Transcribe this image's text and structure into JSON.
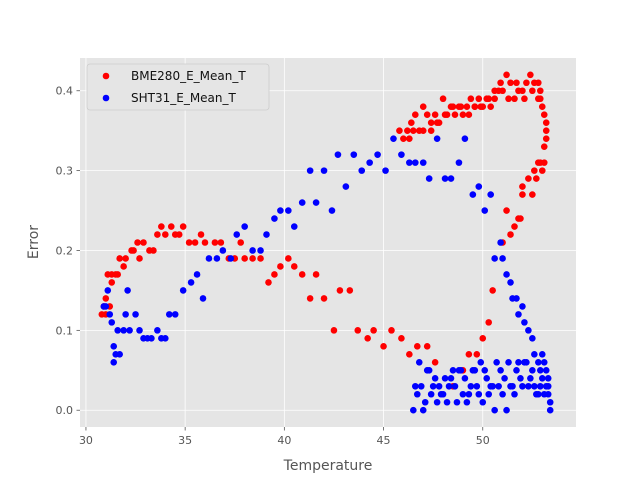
{
  "chart_data": {
    "type": "scatter",
    "title": "",
    "xlabel": "Temperature",
    "ylabel": "Error",
    "xlim": [
      29.7,
      54.7
    ],
    "ylim": [
      -0.021,
      0.441
    ],
    "xticks": [
      30,
      35,
      40,
      45,
      50
    ],
    "yticks": [
      0.0,
      0.1,
      0.2,
      0.3,
      0.4
    ],
    "ytick_labels": [
      "0.0",
      "0.1",
      "0.2",
      "0.3",
      "0.4"
    ],
    "grid": true,
    "legend_position": "top-left",
    "series": [
      {
        "name": "BME280_E_Mean_T",
        "color": "#ff0000",
        "points": [
          [
            30.8,
            0.12
          ],
          [
            30.9,
            0.13
          ],
          [
            31.0,
            0.12
          ],
          [
            31.0,
            0.14
          ],
          [
            31.1,
            0.17
          ],
          [
            31.2,
            0.13
          ],
          [
            31.3,
            0.16
          ],
          [
            31.3,
            0.17
          ],
          [
            31.5,
            0.17
          ],
          [
            31.6,
            0.17
          ],
          [
            31.7,
            0.19
          ],
          [
            31.9,
            0.18
          ],
          [
            32.0,
            0.19
          ],
          [
            32.3,
            0.2
          ],
          [
            32.4,
            0.2
          ],
          [
            32.6,
            0.21
          ],
          [
            32.7,
            0.19
          ],
          [
            32.9,
            0.21
          ],
          [
            33.2,
            0.2
          ],
          [
            33.4,
            0.2
          ],
          [
            33.6,
            0.22
          ],
          [
            33.8,
            0.23
          ],
          [
            34.0,
            0.22
          ],
          [
            34.3,
            0.23
          ],
          [
            34.5,
            0.22
          ],
          [
            34.7,
            0.22
          ],
          [
            34.9,
            0.23
          ],
          [
            35.2,
            0.21
          ],
          [
            35.5,
            0.21
          ],
          [
            35.8,
            0.22
          ],
          [
            36.0,
            0.21
          ],
          [
            36.5,
            0.21
          ],
          [
            36.8,
            0.21
          ],
          [
            37.2,
            0.19
          ],
          [
            37.5,
            0.19
          ],
          [
            37.8,
            0.21
          ],
          [
            38.0,
            0.19
          ],
          [
            38.4,
            0.19
          ],
          [
            38.8,
            0.19
          ],
          [
            39.2,
            0.16
          ],
          [
            39.5,
            0.17
          ],
          [
            39.8,
            0.18
          ],
          [
            40.2,
            0.19
          ],
          [
            40.5,
            0.18
          ],
          [
            40.9,
            0.17
          ],
          [
            41.3,
            0.14
          ],
          [
            41.6,
            0.17
          ],
          [
            42.0,
            0.14
          ],
          [
            42.5,
            0.1
          ],
          [
            42.8,
            0.15
          ],
          [
            43.3,
            0.15
          ],
          [
            43.7,
            0.1
          ],
          [
            44.2,
            0.09
          ],
          [
            44.5,
            0.1
          ],
          [
            45.0,
            0.08
          ],
          [
            45.4,
            0.1
          ],
          [
            45.9,
            0.09
          ],
          [
            46.3,
            0.07
          ],
          [
            46.7,
            0.08
          ],
          [
            47.2,
            0.08
          ],
          [
            47.6,
            0.06
          ],
          [
            48.5,
            0.03
          ],
          [
            49.0,
            0.05
          ],
          [
            49.3,
            0.07
          ],
          [
            49.7,
            0.07
          ],
          [
            50.0,
            0.09
          ],
          [
            50.3,
            0.11
          ],
          [
            50.5,
            0.15
          ],
          [
            51.0,
            0.21
          ],
          [
            51.2,
            0.25
          ],
          [
            51.4,
            0.22
          ],
          [
            51.6,
            0.23
          ],
          [
            51.8,
            0.24
          ],
          [
            51.9,
            0.24
          ],
          [
            52.0,
            0.27
          ],
          [
            52.0,
            0.28
          ],
          [
            52.3,
            0.29
          ],
          [
            52.5,
            0.27
          ],
          [
            52.6,
            0.3
          ],
          [
            52.7,
            0.29
          ],
          [
            52.8,
            0.31
          ],
          [
            52.9,
            0.31
          ],
          [
            53.0,
            0.3
          ],
          [
            53.1,
            0.31
          ],
          [
            53.1,
            0.33
          ],
          [
            53.2,
            0.34
          ],
          [
            53.2,
            0.35
          ],
          [
            53.2,
            0.36
          ],
          [
            53.1,
            0.37
          ],
          [
            53.0,
            0.38
          ],
          [
            52.9,
            0.39
          ],
          [
            52.9,
            0.4
          ],
          [
            52.8,
            0.41
          ],
          [
            52.6,
            0.41
          ],
          [
            52.4,
            0.42
          ],
          [
            52.2,
            0.41
          ],
          [
            52.0,
            0.4
          ],
          [
            51.8,
            0.4
          ],
          [
            51.6,
            0.39
          ],
          [
            51.4,
            0.41
          ],
          [
            51.2,
            0.42
          ],
          [
            51.0,
            0.4
          ],
          [
            50.8,
            0.4
          ],
          [
            50.6,
            0.39
          ],
          [
            50.4,
            0.38
          ],
          [
            50.2,
            0.39
          ],
          [
            50.0,
            0.38
          ],
          [
            49.8,
            0.39
          ],
          [
            49.6,
            0.38
          ],
          [
            49.4,
            0.39
          ],
          [
            49.2,
            0.38
          ],
          [
            49.0,
            0.37
          ],
          [
            48.8,
            0.38
          ],
          [
            48.6,
            0.37
          ],
          [
            48.4,
            0.38
          ],
          [
            48.2,
            0.37
          ],
          [
            48.0,
            0.39
          ],
          [
            47.8,
            0.36
          ],
          [
            47.6,
            0.37
          ],
          [
            47.4,
            0.36
          ],
          [
            47.2,
            0.37
          ],
          [
            47.0,
            0.38
          ],
          [
            46.8,
            0.35
          ],
          [
            46.6,
            0.37
          ],
          [
            46.4,
            0.36
          ],
          [
            46.2,
            0.35
          ],
          [
            46.0,
            0.34
          ],
          [
            45.8,
            0.35
          ],
          [
            46.3,
            0.34
          ],
          [
            46.5,
            0.35
          ],
          [
            47.0,
            0.35
          ],
          [
            47.4,
            0.35
          ],
          [
            47.7,
            0.36
          ],
          [
            48.1,
            0.37
          ],
          [
            48.5,
            0.38
          ],
          [
            48.9,
            0.38
          ],
          [
            49.3,
            0.37
          ],
          [
            49.6,
            0.38
          ],
          [
            49.9,
            0.38
          ],
          [
            50.3,
            0.39
          ],
          [
            50.6,
            0.4
          ],
          [
            50.9,
            0.41
          ],
          [
            51.3,
            0.39
          ],
          [
            51.7,
            0.41
          ],
          [
            52.1,
            0.39
          ],
          [
            52.5,
            0.4
          ],
          [
            52.8,
            0.39
          ]
        ]
      },
      {
        "name": "SHT31_E_Mean_T",
        "color": "#0000ff",
        "points": [
          [
            30.9,
            0.13
          ],
          [
            31.0,
            0.13
          ],
          [
            31.1,
            0.15
          ],
          [
            31.2,
            0.12
          ],
          [
            31.3,
            0.11
          ],
          [
            31.4,
            0.08
          ],
          [
            31.4,
            0.06
          ],
          [
            31.5,
            0.07
          ],
          [
            31.6,
            0.1
          ],
          [
            31.7,
            0.07
          ],
          [
            31.9,
            0.1
          ],
          [
            32.0,
            0.12
          ],
          [
            32.1,
            0.15
          ],
          [
            32.2,
            0.1
          ],
          [
            32.5,
            0.12
          ],
          [
            32.7,
            0.1
          ],
          [
            32.9,
            0.09
          ],
          [
            33.1,
            0.09
          ],
          [
            33.3,
            0.09
          ],
          [
            33.6,
            0.1
          ],
          [
            33.8,
            0.09
          ],
          [
            34.0,
            0.09
          ],
          [
            34.2,
            0.12
          ],
          [
            34.5,
            0.12
          ],
          [
            34.9,
            0.15
          ],
          [
            35.3,
            0.16
          ],
          [
            35.6,
            0.17
          ],
          [
            35.9,
            0.14
          ],
          [
            36.2,
            0.19
          ],
          [
            36.6,
            0.19
          ],
          [
            36.9,
            0.2
          ],
          [
            37.3,
            0.19
          ],
          [
            37.6,
            0.22
          ],
          [
            38.0,
            0.23
          ],
          [
            38.4,
            0.2
          ],
          [
            38.8,
            0.2
          ],
          [
            39.1,
            0.22
          ],
          [
            39.5,
            0.24
          ],
          [
            39.8,
            0.25
          ],
          [
            40.2,
            0.25
          ],
          [
            40.5,
            0.23
          ],
          [
            40.9,
            0.26
          ],
          [
            41.3,
            0.3
          ],
          [
            41.6,
            0.26
          ],
          [
            42.0,
            0.3
          ],
          [
            42.4,
            0.25
          ],
          [
            42.7,
            0.32
          ],
          [
            43.1,
            0.28
          ],
          [
            43.5,
            0.32
          ],
          [
            43.9,
            0.3
          ],
          [
            44.3,
            0.31
          ],
          [
            44.7,
            0.32
          ],
          [
            45.1,
            0.3
          ],
          [
            45.5,
            0.34
          ],
          [
            45.9,
            0.32
          ],
          [
            46.3,
            0.31
          ],
          [
            46.6,
            0.31
          ],
          [
            47.0,
            0.31
          ],
          [
            47.3,
            0.29
          ],
          [
            47.7,
            0.34
          ],
          [
            48.1,
            0.29
          ],
          [
            48.4,
            0.29
          ],
          [
            48.8,
            0.31
          ],
          [
            49.1,
            0.34
          ],
          [
            49.5,
            0.27
          ],
          [
            49.8,
            0.28
          ],
          [
            50.1,
            0.25
          ],
          [
            50.4,
            0.27
          ],
          [
            50.6,
            0.19
          ],
          [
            50.9,
            0.21
          ],
          [
            51.0,
            0.19
          ],
          [
            51.2,
            0.17
          ],
          [
            51.4,
            0.16
          ],
          [
            51.5,
            0.14
          ],
          [
            51.7,
            0.14
          ],
          [
            51.8,
            0.12
          ],
          [
            52.0,
            0.13
          ],
          [
            52.1,
            0.11
          ],
          [
            52.3,
            0.1
          ],
          [
            52.5,
            0.09
          ],
          [
            52.6,
            0.07
          ],
          [
            52.8,
            0.06
          ],
          [
            52.9,
            0.05
          ],
          [
            53.0,
            0.07
          ],
          [
            53.1,
            0.06
          ],
          [
            53.2,
            0.05
          ],
          [
            53.3,
            0.04
          ],
          [
            53.3,
            0.02
          ],
          [
            53.4,
            0.01
          ],
          [
            53.4,
            0.0
          ],
          [
            53.3,
            0.03
          ],
          [
            53.1,
            0.02
          ],
          [
            52.9,
            0.03
          ],
          [
            52.7,
            0.02
          ],
          [
            52.5,
            0.05
          ],
          [
            52.3,
            0.03
          ],
          [
            52.1,
            0.06
          ],
          [
            51.9,
            0.04
          ],
          [
            51.7,
            0.05
          ],
          [
            51.5,
            0.03
          ],
          [
            51.3,
            0.06
          ],
          [
            51.1,
            0.04
          ],
          [
            50.9,
            0.05
          ],
          [
            50.7,
            0.06
          ],
          [
            50.5,
            0.03
          ],
          [
            50.3,
            0.02
          ],
          [
            50.1,
            0.05
          ],
          [
            49.9,
            0.06
          ],
          [
            49.7,
            0.03
          ],
          [
            49.5,
            0.05
          ],
          [
            49.3,
            0.02
          ],
          [
            49.1,
            0.04
          ],
          [
            48.9,
            0.05
          ],
          [
            48.7,
            0.01
          ],
          [
            48.5,
            0.05
          ],
          [
            48.3,
            0.03
          ],
          [
            48.1,
            0.04
          ],
          [
            47.9,
            0.02
          ],
          [
            47.7,
            0.01
          ],
          [
            47.5,
            0.03
          ],
          [
            47.3,
            0.05
          ],
          [
            47.1,
            0.01
          ],
          [
            46.9,
            0.03
          ],
          [
            46.7,
            0.02
          ],
          [
            46.5,
            0.0
          ],
          [
            46.6,
            0.03
          ],
          [
            46.8,
            0.06
          ],
          [
            47.0,
            0.0
          ],
          [
            47.2,
            0.05
          ],
          [
            47.4,
            0.02
          ],
          [
            47.6,
            0.04
          ],
          [
            47.8,
            0.03
          ],
          [
            48.0,
            0.02
          ],
          [
            48.2,
            0.01
          ],
          [
            48.4,
            0.04
          ],
          [
            48.6,
            0.03
          ],
          [
            48.8,
            0.05
          ],
          [
            49.0,
            0.02
          ],
          [
            49.2,
            0.01
          ],
          [
            49.4,
            0.03
          ],
          [
            49.6,
            0.05
          ],
          [
            49.8,
            0.02
          ],
          [
            50.0,
            0.01
          ],
          [
            50.2,
            0.04
          ],
          [
            50.4,
            0.03
          ],
          [
            50.6,
            0.0
          ],
          [
            50.8,
            0.03
          ],
          [
            51.0,
            0.02
          ],
          [
            51.2,
            0.0
          ],
          [
            51.4,
            0.03
          ],
          [
            51.6,
            0.02
          ],
          [
            51.8,
            0.06
          ],
          [
            52.0,
            0.03
          ],
          [
            52.2,
            0.06
          ],
          [
            52.4,
            0.04
          ],
          [
            52.6,
            0.03
          ],
          [
            52.8,
            0.02
          ],
          [
            53.0,
            0.04
          ],
          [
            53.2,
            0.03
          ]
        ]
      }
    ]
  }
}
